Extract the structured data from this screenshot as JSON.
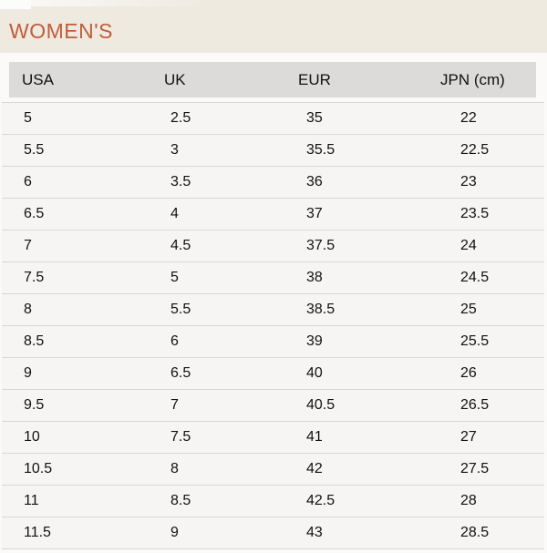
{
  "title": "WOMEN'S",
  "table": {
    "headers": [
      "USA",
      "UK",
      "EUR",
      "JPN (cm)"
    ],
    "rows": [
      [
        "5",
        "2.5",
        "35",
        "22"
      ],
      [
        "5.5",
        "3",
        "35.5",
        "22.5"
      ],
      [
        "6",
        "3.5",
        "36",
        "23"
      ],
      [
        "6.5",
        "4",
        "37",
        "23.5"
      ],
      [
        "7",
        "4.5",
        "37.5",
        "24"
      ],
      [
        "7.5",
        "5",
        "38",
        "24.5"
      ],
      [
        "8",
        "5.5",
        "38.5",
        "25"
      ],
      [
        "8.5",
        "6",
        "39",
        "25.5"
      ],
      [
        "9",
        "6.5",
        "40",
        "26"
      ],
      [
        "9.5",
        "7",
        "40.5",
        "26.5"
      ],
      [
        "10",
        "7.5",
        "41",
        "27"
      ],
      [
        "10.5",
        "8",
        "42",
        "27.5"
      ],
      [
        "11",
        "8.5",
        "42.5",
        "28"
      ],
      [
        "11.5",
        "9",
        "43",
        "28.5"
      ]
    ]
  },
  "colors": {
    "title_color": "#c25c3b",
    "banner_bg": "#eeeae0",
    "header_bg": "#dcdbd9",
    "row_bg": "#f6f5f3",
    "separator": "#d8d7d5",
    "page_bg": "#fbfaf8",
    "text": "#121212"
  }
}
